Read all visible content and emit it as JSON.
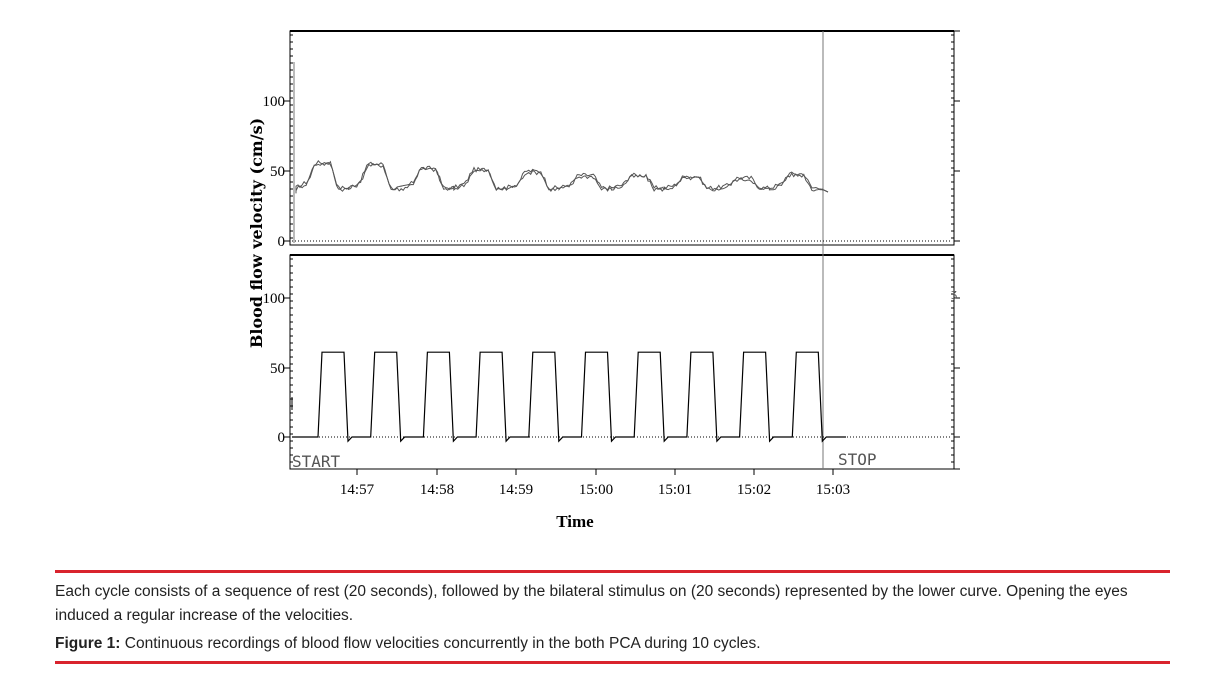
{
  "chart_data": [
    {
      "type": "line",
      "panel": "upper",
      "ylabel": "Blood flow velocity (cm/s)",
      "yticks": [
        0,
        50,
        100
      ],
      "ylim": [
        -3,
        150
      ],
      "cycles": 10,
      "series": [
        {
          "values_per_cycle": {
            "rest": 38,
            "stimulus": [
              56,
              55,
              52,
              51,
              50,
              47,
              47,
              46,
              45,
              48
            ]
          }
        },
        {
          "values_per_cycle": {
            "rest": 37,
            "stimulus": [
              55,
              54,
              51,
              50,
              49,
              46,
              46,
              45,
              44,
              47
            ]
          }
        }
      ],
      "end_value": 35
    },
    {
      "type": "line",
      "panel": "lower",
      "ylabel": "Blood flow velocity (cm/s)",
      "yticks": [
        0,
        50,
        100
      ],
      "ylim": [
        -20,
        130
      ],
      "cycles": 10,
      "series": [
        {
          "values_per_cycle": {
            "rest": 0,
            "stimulus": 61
          }
        }
      ]
    }
  ],
  "xaxis": {
    "title": "Time",
    "ticks": [
      "14:57",
      "14:58",
      "14:59",
      "15:00",
      "15:01",
      "15:02",
      "15:03"
    ]
  },
  "markers": {
    "start": "START",
    "stop": "STOP"
  },
  "caption": {
    "note": "Each cycle consists of a sequence of rest (20 seconds), followed by the bilateral stimulus on (20 seconds) represented by the lower curve. Opening the eyes induced a regular increase of the velocities.",
    "figure_label": "Figure 1:",
    "figure_text": "Continuous recordings of blood flow velocities concurrently in the both PCA during 10 cycles."
  },
  "colors": {
    "trace": "#555555",
    "stimulus": "#000000",
    "rule": "#d9232d"
  }
}
